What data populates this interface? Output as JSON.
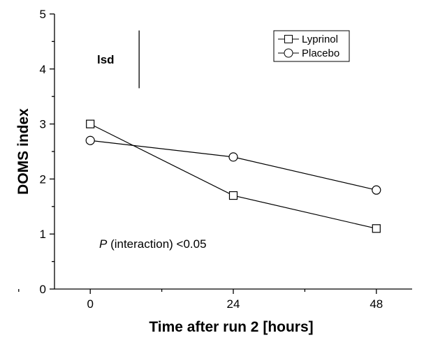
{
  "chart_data": {
    "type": "line",
    "xlabel": "Time after run 2 [hours]",
    "ylabel": "DOMS index",
    "x": [
      0,
      24,
      48
    ],
    "xticks": [
      "0",
      "24",
      "48"
    ],
    "yticks": [
      "0",
      "1",
      "2",
      "3",
      "4",
      "5"
    ],
    "xlim": [
      -6,
      54
    ],
    "ylim": [
      0,
      5
    ],
    "series": [
      {
        "name": "Lyprinol",
        "marker": "square",
        "values": [
          3.0,
          1.7,
          1.1
        ]
      },
      {
        "name": "Placebo",
        "marker": "circle",
        "values": [
          2.7,
          2.4,
          1.8
        ]
      }
    ],
    "legend_position": "top-right",
    "grid": false,
    "annotations": {
      "lsd_label": "lsd",
      "lsd_bar": {
        "x": 8.2,
        "y_from": 3.65,
        "y_to": 4.7
      },
      "p_value_italic": "P",
      "p_value_rest": " (interaction) <0.05",
      "p_value_position": {
        "x": 1.5,
        "y": 0.75
      }
    },
    "colors": {
      "line": "#000000",
      "marker_fill": "#ffffff"
    }
  }
}
